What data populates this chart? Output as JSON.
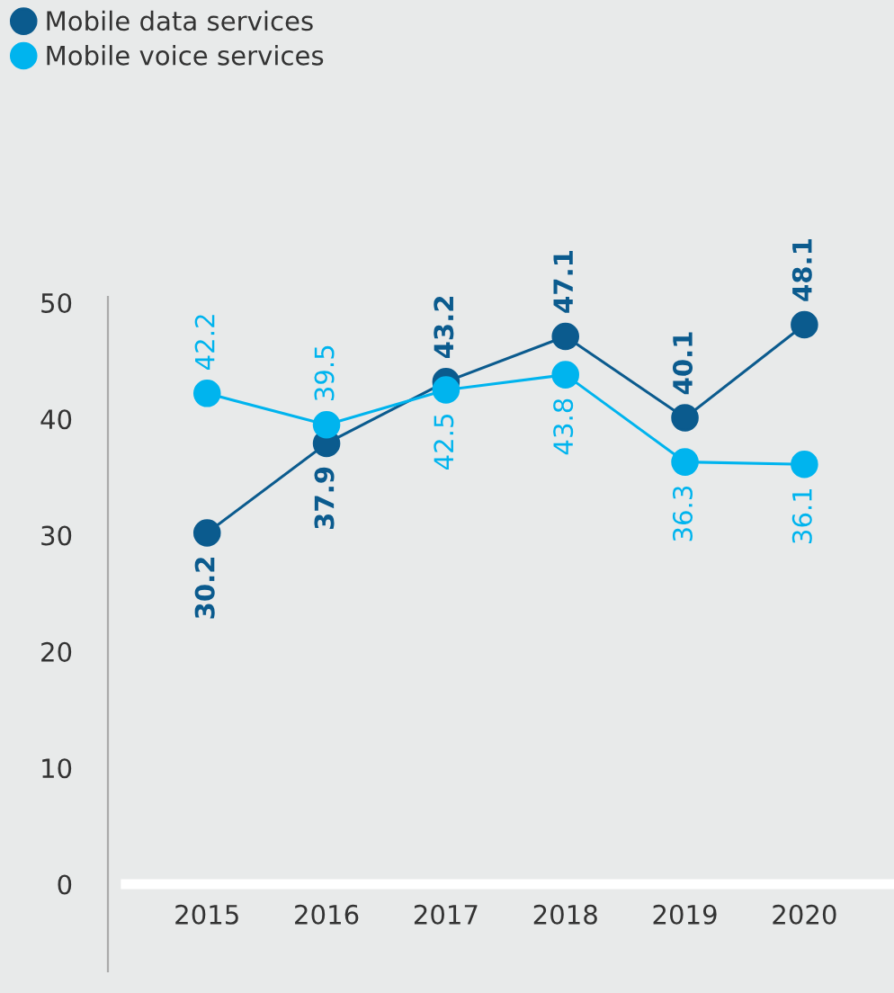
{
  "chart_data": {
    "type": "line",
    "categories": [
      "2015",
      "2016",
      "2017",
      "2018",
      "2019",
      "2020"
    ],
    "series": [
      {
        "name": "Mobile data services",
        "color": "#0b5b8e",
        "values": [
          30.2,
          37.9,
          43.2,
          47.1,
          40.1,
          48.1
        ]
      },
      {
        "name": "Mobile voice services",
        "color": "#00b4ee",
        "values": [
          42.2,
          39.5,
          42.5,
          43.8,
          36.3,
          36.1
        ]
      }
    ],
    "ylim": [
      -7.5,
      50.5
    ],
    "yticks": [
      0,
      10,
      20,
      30,
      40,
      50
    ],
    "grid": false,
    "legend": "top left",
    "marker": "circle",
    "line_style": "solid",
    "data_labels": true
  }
}
